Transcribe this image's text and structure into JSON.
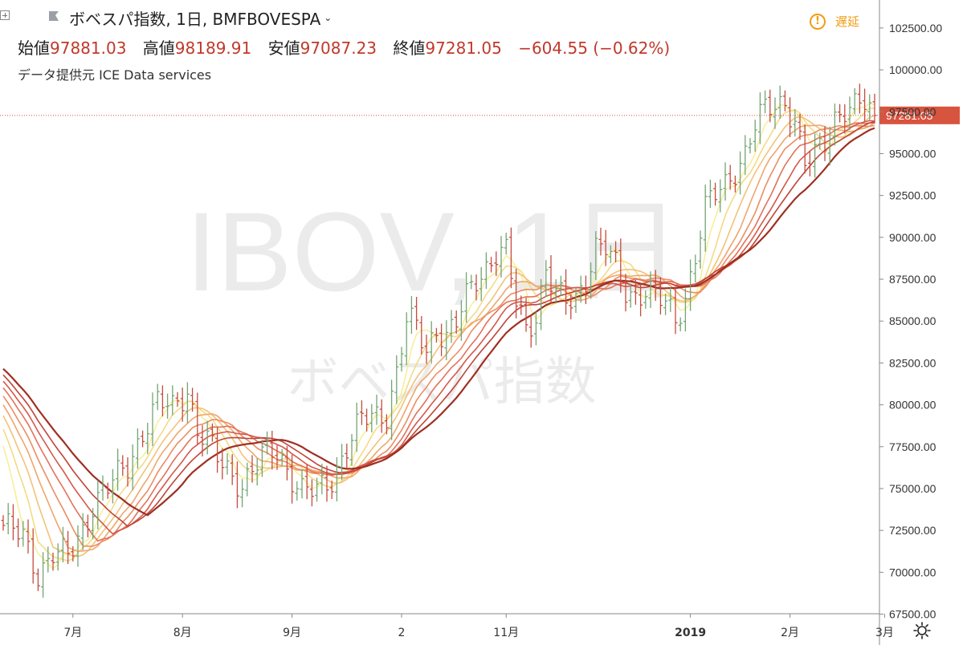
{
  "header": {
    "title": "ボベスパ指数, 1日, BMFBOVESPA",
    "ohlc": [
      {
        "label": "始値",
        "value": "97881.03"
      },
      {
        "label": "高値",
        "value": "98189.91"
      },
      {
        "label": "安値",
        "value": "97087.23"
      },
      {
        "label": "終値",
        "value": "97281.05"
      }
    ],
    "change": "−604.55 (−0.62%)",
    "source": "データ提供元 ICE Data services",
    "delay_label": "遅延",
    "delay_icon": "exclamation-icon"
  },
  "watermark": {
    "line1": "IBOV, 1日",
    "line2": "ボベスパ指数"
  },
  "colors": {
    "up": "#73a573",
    "down": "#c64a3d",
    "last_price": "#d7543f",
    "ribbon": [
      "#f7ef9a",
      "#f5da84",
      "#f3c277",
      "#efa66c",
      "#eb8d63",
      "#e2725a",
      "#d4584a",
      "#bf4438",
      "#9e2f22"
    ]
  },
  "chart_data": {
    "type": "line",
    "chart_style": "ohlc-bars with moving-average ribbon",
    "y_axis": {
      "side": "right",
      "ticks": [
        "102500.00",
        "100000.00",
        "97500.00",
        "95000.00",
        "92500.00",
        "90000.00",
        "87500.00",
        "85000.00",
        "82500.00",
        "80000.00",
        "77500.00",
        "75000.00",
        "72500.00",
        "70000.00",
        "67500.00"
      ],
      "range": [
        67000,
        103500
      ]
    },
    "x_axis": {
      "labels": [
        {
          "text": "7月",
          "bold": false
        },
        {
          "text": "8月",
          "bold": false
        },
        {
          "text": "9月",
          "bold": false
        },
        {
          "text": "2",
          "bold": false
        },
        {
          "text": "11月",
          "bold": false
        },
        {
          "text": "2019",
          "bold": true
        },
        {
          "text": "2月",
          "bold": false
        },
        {
          "text": "3月",
          "bold": false
        }
      ],
      "label_bar_index": [
        14,
        36,
        58,
        80,
        101,
        138,
        158,
        177
      ]
    },
    "last_price": {
      "value": 97281.05,
      "label": "97281.05"
    },
    "price_path": [
      [
        0,
        72800
      ],
      [
        4,
        72000
      ],
      [
        7,
        70000
      ],
      [
        10,
        71200
      ],
      [
        13,
        70800
      ],
      [
        16,
        72500
      ],
      [
        18,
        74200
      ],
      [
        20,
        74800
      ],
      [
        22,
        75300
      ],
      [
        25,
        76300
      ],
      [
        28,
        78500
      ],
      [
        31,
        80100
      ],
      [
        34,
        79700
      ],
      [
        37,
        81000
      ],
      [
        39,
        78600
      ],
      [
        41,
        77800
      ],
      [
        43,
        76700
      ],
      [
        46,
        75800
      ],
      [
        48,
        75400
      ],
      [
        52,
        76800
      ],
      [
        55,
        77200
      ],
      [
        58,
        75800
      ],
      [
        60,
        74900
      ],
      [
        63,
        74700
      ],
      [
        66,
        75600
      ],
      [
        69,
        77600
      ],
      [
        72,
        79000
      ],
      [
        75,
        79300
      ],
      [
        77,
        79600
      ],
      [
        79,
        82000
      ],
      [
        81,
        85000
      ],
      [
        83,
        84500
      ],
      [
        85,
        83200
      ],
      [
        87,
        84700
      ],
      [
        89,
        84200
      ],
      [
        91,
        84800
      ],
      [
        93,
        86300
      ],
      [
        95,
        87500
      ],
      [
        97,
        88300
      ],
      [
        99,
        89200
      ],
      [
        101,
        89000
      ],
      [
        103,
        86000
      ],
      [
        105,
        84500
      ],
      [
        107,
        85500
      ],
      [
        109,
        88200
      ],
      [
        111,
        86500
      ],
      [
        113,
        86000
      ],
      [
        115,
        86300
      ],
      [
        117,
        87700
      ],
      [
        119,
        89500
      ],
      [
        121,
        89300
      ],
      [
        123,
        88100
      ],
      [
        125,
        86800
      ],
      [
        127,
        86600
      ],
      [
        129,
        87000
      ],
      [
        131,
        86400
      ],
      [
        133,
        85900
      ],
      [
        135,
        85100
      ],
      [
        137,
        86500
      ],
      [
        139,
        89000
      ],
      [
        141,
        91600
      ],
      [
        143,
        92500
      ],
      [
        145,
        93200
      ],
      [
        147,
        94200
      ],
      [
        149,
        95000
      ],
      [
        151,
        96600
      ],
      [
        153,
        97500
      ],
      [
        155,
        98000
      ],
      [
        157,
        98200
      ],
      [
        159,
        97000
      ],
      [
        161,
        94200
      ],
      [
        163,
        94800
      ],
      [
        165,
        95800
      ],
      [
        167,
        97300
      ],
      [
        169,
        97700
      ],
      [
        171,
        97600
      ],
      [
        173,
        97900
      ],
      [
        175,
        97281
      ]
    ],
    "series": [
      {
        "window": 5
      },
      {
        "window": 8
      },
      {
        "window": 11
      },
      {
        "window": 14
      },
      {
        "window": 17
      },
      {
        "window": 20
      },
      {
        "window": 23
      },
      {
        "window": 26
      },
      {
        "window": 30
      }
    ]
  }
}
